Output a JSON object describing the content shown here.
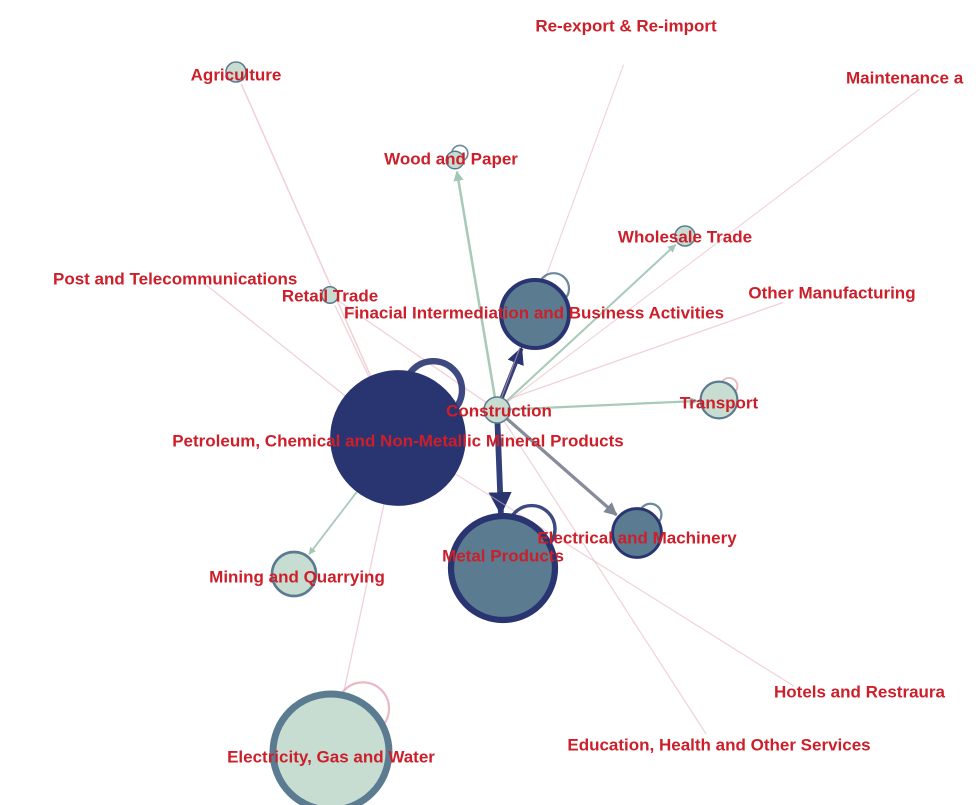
{
  "colors": {
    "label": "#cc1f2a",
    "dark": "#283571",
    "mid": "#5b7b91",
    "light": "#c8ddd2",
    "edge_green": "#a3c7b5",
    "edge_pink": "#e7b2bd",
    "edge_gray": "#7f8694"
  },
  "nodes": [
    {
      "id": "construction",
      "label": "Construction",
      "weight": 0.15,
      "fill": "light",
      "stroke": "mid"
    },
    {
      "id": "petroleum",
      "label": "Petroleum, Chemical and Non-Metallic Mineral Products",
      "weight": 1.0,
      "fill": "dark",
      "stroke": "dark"
    },
    {
      "id": "metal",
      "label": "Metal Products",
      "weight": 0.8,
      "fill": "mid",
      "stroke": "dark"
    },
    {
      "id": "financial",
      "label": "Finacial Intermediation and Business Activities",
      "weight": 0.5,
      "fill": "mid",
      "stroke": "dark"
    },
    {
      "id": "electrical",
      "label": "Electrical and Machinery",
      "weight": 0.34,
      "fill": "mid",
      "stroke": "dark"
    },
    {
      "id": "electricity",
      "label": "Electricity, Gas and Water",
      "weight": 0.9,
      "fill": "light",
      "stroke": "mid"
    },
    {
      "id": "mining",
      "label": "Mining and Quarrying",
      "weight": 0.3,
      "fill": "light",
      "stroke": "mid"
    },
    {
      "id": "transport",
      "label": "Transport",
      "weight": 0.24,
      "fill": "light",
      "stroke": "mid"
    },
    {
      "id": "wholesale",
      "label": "Wholesale Trade",
      "weight": 0.1,
      "fill": "light",
      "stroke": "mid"
    },
    {
      "id": "wood",
      "label": "Wood and Paper",
      "weight": 0.08,
      "fill": "light",
      "stroke": "mid"
    },
    {
      "id": "agriculture",
      "label": "Agriculture",
      "weight": 0.1,
      "fill": "light",
      "stroke": "mid"
    },
    {
      "id": "retail",
      "label": "Retail Trade",
      "weight": 0.07,
      "fill": "light",
      "stroke": "mid"
    },
    {
      "id": "post",
      "label": "Post and Telecommunications",
      "weight": 0.0,
      "fill": "light",
      "stroke": "mid"
    },
    {
      "id": "reexport",
      "label": "Re-export & Re-import",
      "weight": 0.0,
      "fill": "light",
      "stroke": "mid"
    },
    {
      "id": "maintenance",
      "label": "Maintenance a",
      "weight": 0.0,
      "fill": "light",
      "stroke": "mid"
    },
    {
      "id": "othermfg",
      "label": "Other Manufacturing",
      "weight": 0.0,
      "fill": "light",
      "stroke": "mid"
    },
    {
      "id": "hotels",
      "label": "Hotels and Restraura",
      "weight": 0.0,
      "fill": "light",
      "stroke": "mid"
    },
    {
      "id": "education",
      "label": "Education, Health and Other Services",
      "weight": 0.0,
      "fill": "light",
      "stroke": "mid"
    }
  ],
  "edges": [
    {
      "from": "construction",
      "to": "metal",
      "strength": 1.0,
      "color": "dark"
    },
    {
      "from": "construction",
      "to": "financial",
      "strength": 0.7,
      "color": "dark"
    },
    {
      "from": "construction",
      "to": "electrical",
      "strength": 0.5,
      "color": "edge_gray"
    },
    {
      "from": "construction",
      "to": "wood",
      "strength": 0.35,
      "color": "edge_green"
    },
    {
      "from": "construction",
      "to": "wholesale",
      "strength": 0.25,
      "color": "edge_green"
    },
    {
      "from": "construction",
      "to": "transport",
      "strength": 0.3,
      "color": "edge_green"
    },
    {
      "from": "petroleum",
      "to": "agriculture",
      "strength": 0.15,
      "color": "edge_pink"
    },
    {
      "from": "petroleum",
      "to": "mining",
      "strength": 0.2,
      "color": "edge_green"
    },
    {
      "from": "petroleum",
      "to": "post",
      "strength": 0.1,
      "color": "edge_pink"
    },
    {
      "from": "petroleum",
      "to": "retail",
      "strength": 0.1,
      "color": "edge_pink"
    },
    {
      "from": "petroleum",
      "to": "othermfg",
      "strength": 0.1,
      "color": "edge_pink"
    },
    {
      "from": "petroleum",
      "to": "electricity",
      "strength": 0.1,
      "color": "edge_pink"
    },
    {
      "from": "petroleum",
      "to": "hotels",
      "strength": 0.08,
      "color": "edge_pink"
    },
    {
      "from": "construction",
      "to": "education",
      "strength": 0.08,
      "color": "edge_pink"
    },
    {
      "from": "construction",
      "to": "reexport",
      "strength": 0.06,
      "color": "edge_pink"
    },
    {
      "from": "construction",
      "to": "maintenance",
      "strength": 0.06,
      "color": "edge_pink"
    },
    {
      "from": "construction",
      "to": "retail",
      "strength": 0.1,
      "color": "edge_pink"
    }
  ],
  "self_loops": [
    {
      "node": "petroleum",
      "color": "dark",
      "strength": 0.9
    },
    {
      "node": "metal",
      "color": "dark",
      "strength": 0.4
    },
    {
      "node": "financial",
      "color": "mid",
      "strength": 0.2
    },
    {
      "node": "electrical",
      "color": "mid",
      "strength": 0.2
    },
    {
      "node": "electricity",
      "color": "edge_pink",
      "strength": 0.2
    },
    {
      "node": "transport",
      "color": "edge_pink",
      "strength": 0.15
    },
    {
      "node": "wood",
      "color": "mid",
      "strength": 0.1
    }
  ]
}
